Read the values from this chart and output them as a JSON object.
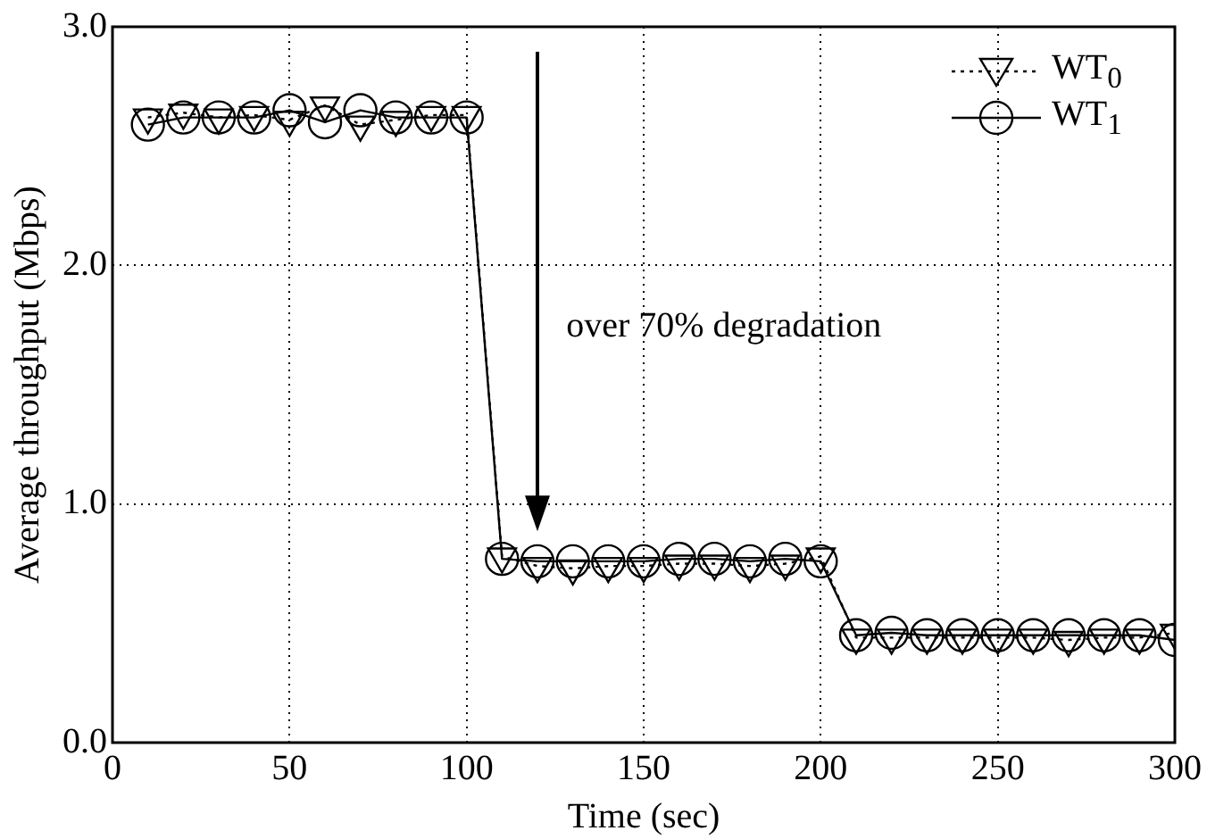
{
  "chart_data": {
    "type": "line",
    "xlabel": "Time (sec)",
    "ylabel": "Average throughput (Mbps)",
    "x": [
      10,
      20,
      30,
      40,
      50,
      60,
      70,
      80,
      90,
      100,
      110,
      120,
      130,
      140,
      150,
      160,
      170,
      180,
      190,
      200,
      210,
      220,
      230,
      240,
      250,
      260,
      270,
      280,
      290,
      300
    ],
    "series": [
      {
        "name": "WT$_{0}$",
        "color": "#000000",
        "marker": "triangle",
        "line_style": "dotted",
        "values": [
          2.62,
          2.64,
          2.62,
          2.63,
          2.61,
          2.67,
          2.59,
          2.61,
          2.63,
          2.63,
          0.78,
          0.74,
          0.73,
          0.74,
          0.74,
          0.75,
          0.75,
          0.74,
          0.75,
          0.78,
          0.44,
          0.44,
          0.44,
          0.44,
          0.44,
          0.44,
          0.43,
          0.44,
          0.44,
          0.46
        ]
      },
      {
        "name": "WT$_{1}$",
        "color": "#000000",
        "marker": "circle",
        "line_style": "solid",
        "values": [
          2.59,
          2.62,
          2.62,
          2.62,
          2.65,
          2.6,
          2.65,
          2.62,
          2.62,
          2.62,
          0.77,
          0.76,
          0.76,
          0.76,
          0.76,
          0.77,
          0.77,
          0.76,
          0.77,
          0.76,
          0.45,
          0.46,
          0.45,
          0.45,
          0.45,
          0.45,
          0.45,
          0.45,
          0.45,
          0.43
        ]
      }
    ],
    "xlim": [
      0,
      300
    ],
    "xticks": [
      0,
      50,
      100,
      150,
      200,
      250,
      300
    ],
    "ylim": [
      0,
      3
    ],
    "yticks": [
      {
        "value": 0,
        "label": "0.0"
      },
      {
        "value": 1,
        "label": "1.0"
      },
      {
        "value": 2,
        "label": "2.0"
      },
      {
        "value": 3,
        "label": "3.0"
      }
    ],
    "grid": true,
    "legend": "top right",
    "annotations": [
      "over 70% degradation"
    ]
  }
}
